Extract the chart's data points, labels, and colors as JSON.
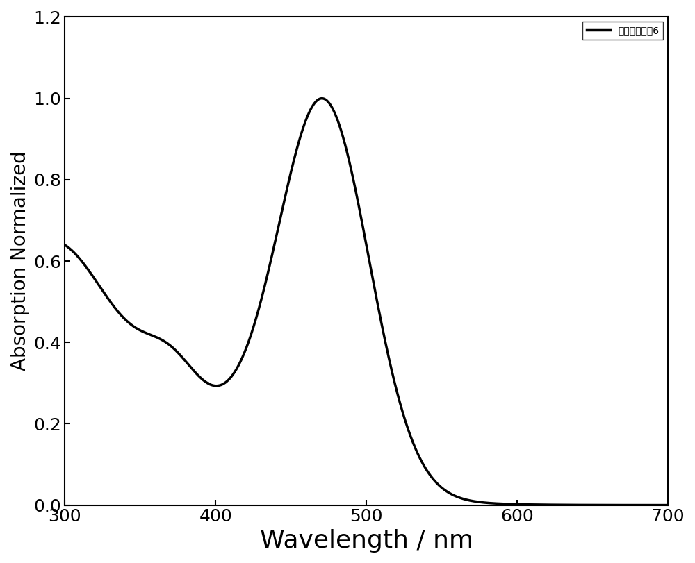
{
  "xlabel": "Wavelength / nm",
  "ylabel": "Absorption Normalized",
  "legend_label": "空穴传输材料6",
  "xlim": [
    300,
    700
  ],
  "ylim": [
    0,
    1.2
  ],
  "xticks": [
    300,
    400,
    500,
    600,
    700
  ],
  "yticks": [
    0.0,
    0.2,
    0.4,
    0.6,
    0.8,
    1.0,
    1.2
  ],
  "line_color": "#000000",
  "line_width": 2.5,
  "background_color": "#ffffff",
  "xlabel_fontsize": 26,
  "ylabel_fontsize": 20,
  "tick_fontsize": 18,
  "legend_fontsize": 18
}
